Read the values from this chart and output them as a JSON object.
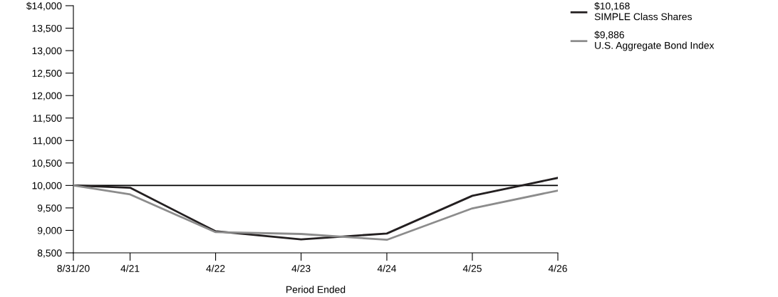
{
  "chart_data": {
    "type": "line",
    "xlabel": "Period Ended",
    "x": [
      "2020-08-31",
      "2021-04-30",
      "2022-04-30",
      "2023-04-30",
      "2024-04-30",
      "2025-04-30",
      "2026-04-30"
    ],
    "series": [
      {
        "name": "$10,168\nSIMPLE Class Shares",
        "color": "#231f20",
        "values": [
          10000,
          9950,
          8980,
          8800,
          8930,
          9770,
          10168
        ]
      },
      {
        "name": "$9,886\nU.S. Aggregate Bond Index",
        "color": "#8c8c8c",
        "values": [
          10000,
          9800,
          8960,
          8920,
          8790,
          9490,
          9886
        ]
      }
    ],
    "xlim": [
      "2020-08-31",
      "2026-04-30"
    ],
    "xticks": [
      {
        "value": "2020-08-31",
        "label": "8/31/20"
      },
      {
        "value": "2021-04-30",
        "label": "4/21"
      },
      {
        "value": "2022-04-30",
        "label": "4/22"
      },
      {
        "value": "2023-04-30",
        "label": "4/23"
      },
      {
        "value": "2024-04-30",
        "label": "4/24"
      },
      {
        "value": "2025-04-30",
        "label": "4/25"
      },
      {
        "value": "2026-04-30",
        "label": "4/26"
      }
    ],
    "ylim": [
      8500,
      14000
    ],
    "yticks": [
      {
        "value": 8500,
        "label": "8,500"
      },
      {
        "value": 9000,
        "label": "9,000"
      },
      {
        "value": 9500,
        "label": "9,500"
      },
      {
        "value": 10000,
        "label": "10,000"
      },
      {
        "value": 10500,
        "label": "10,500"
      },
      {
        "value": 11000,
        "label": "11,000"
      },
      {
        "value": 11500,
        "label": "11,500"
      },
      {
        "value": 12000,
        "label": "12,000"
      },
      {
        "value": 12500,
        "label": "12,500"
      },
      {
        "value": 13000,
        "label": "13,000"
      },
      {
        "value": 13500,
        "label": "13,500"
      },
      {
        "value": 14000,
        "label": "$14,000"
      }
    ],
    "ref_lines": [
      {
        "axis": "y",
        "value": 10000,
        "color": "#000000"
      }
    ],
    "grid": false,
    "legend": "right",
    "marker": "none",
    "line_style": "solid"
  }
}
